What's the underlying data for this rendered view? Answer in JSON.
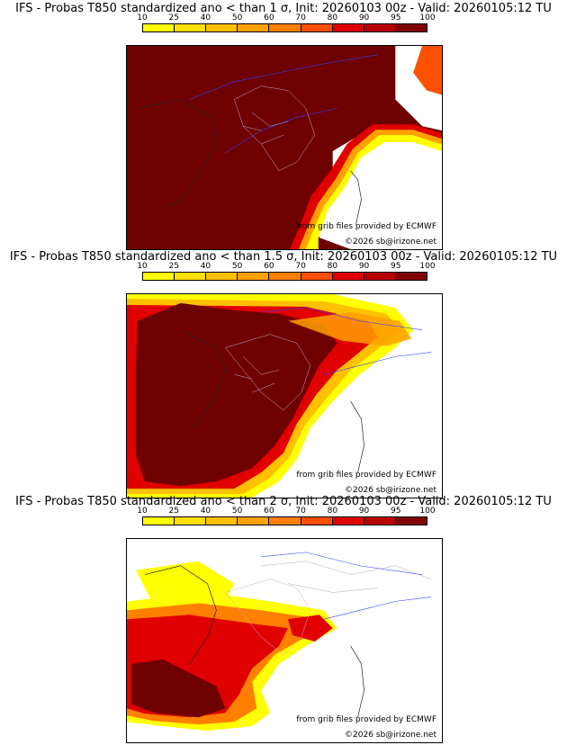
{
  "colorbar": {
    "ticks": [
      "10",
      "25",
      "40",
      "50",
      "60",
      "70",
      "80",
      "90",
      "95",
      "100"
    ],
    "colors": [
      "#ffff00",
      "#ffe000",
      "#ffc000",
      "#ffa000",
      "#ff8000",
      "#ff5000",
      "#e00000",
      "#b80000",
      "#800000"
    ]
  },
  "panels": [
    {
      "title": "IFS - Probas T850  standardized ano < than 1 σ, Init: 20260103 00z - Valid: 20260105:12 TU",
      "threshold_sigma": 1,
      "source": "from grib files provided by ECMWF",
      "copyright": "©2026 sb@irizone.net"
    },
    {
      "title": "IFS - Probas T850  standardized ano < than 1.5 σ, Init: 20260103 00z - Valid: 20260105:12 TU",
      "threshold_sigma": 1.5,
      "source": "from grib files provided by ECMWF",
      "copyright": "©2026 sb@irizone.net"
    },
    {
      "title": "IFS - Probas T850  standardized ano < than 2 σ, Init: 20260103 00z - Valid: 20260105:12 TU",
      "threshold_sigma": 2,
      "source": "from grib files provided by ECMWF",
      "copyright": "©2026 sb@irizone.net"
    }
  ]
}
